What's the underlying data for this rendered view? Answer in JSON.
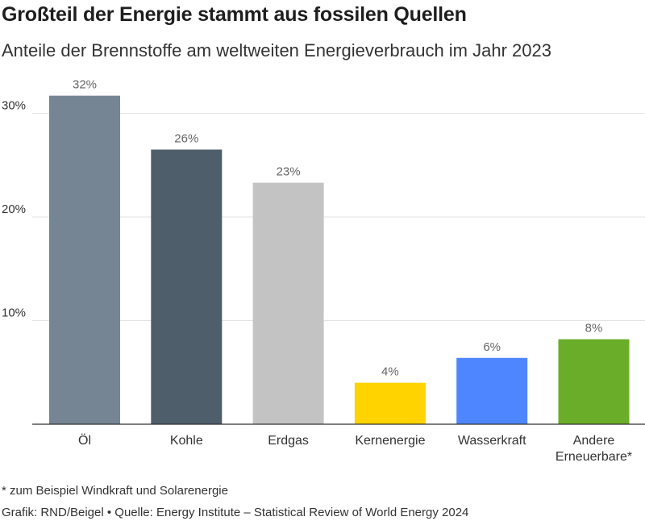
{
  "chart_data": {
    "type": "bar",
    "title": "Großteil der Energie stammt aus fossilen Quellen",
    "subtitle": "Anteile der Brennstoffe am weltweiten Energieverbrauch im Jahr 2023",
    "categories": [
      [
        "Öl"
      ],
      [
        "Kohle"
      ],
      [
        "Erdgas"
      ],
      [
        "Kernenergie"
      ],
      [
        "Wasserkraft"
      ],
      [
        "Andere",
        "Erneuerbare*"
      ]
    ],
    "values": [
      31.7,
      26.5,
      23.3,
      4.0,
      6.4,
      8.2
    ],
    "value_labels": [
      "32%",
      "26%",
      "23%",
      "4%",
      "6%",
      "8%"
    ],
    "colors": [
      "#758594",
      "#4f5e6b",
      "#c3c3c3",
      "#ffd300",
      "#4d86ff",
      "#6aad28"
    ],
    "yticks": [
      10,
      20,
      30
    ],
    "ytick_labels": [
      "10%",
      "20%",
      "30%"
    ],
    "ylim": [
      0,
      35
    ],
    "grid": true,
    "xlabel": "",
    "ylabel": ""
  },
  "footnote": "* zum Beispiel Windkraft und Solarenergie",
  "source": "Grafik: RND/Beigel • Quelle: Energy Institute – Statistical Review of World Energy 2024"
}
